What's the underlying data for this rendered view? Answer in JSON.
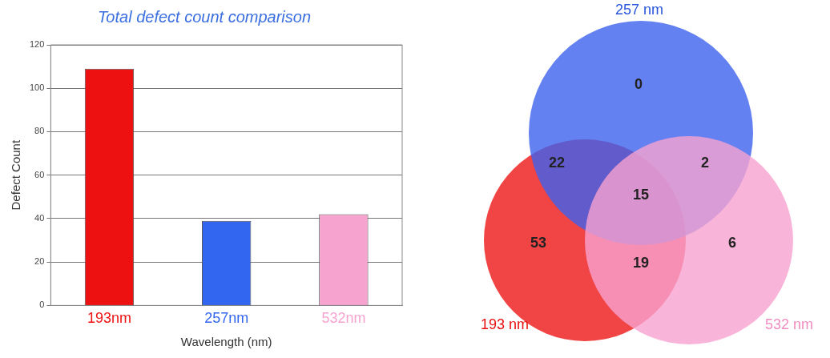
{
  "chart_data": [
    {
      "type": "bar",
      "title": "Total defect count comparison",
      "xlabel": "Wavelength (nm)",
      "ylabel": "Defect Count",
      "categories": [
        "193nm",
        "257nm",
        "532nm"
      ],
      "values": [
        109,
        39,
        42
      ],
      "colors": [
        "#ee1111",
        "#3366f0",
        "#f7a3cf"
      ],
      "ylim": [
        0,
        120
      ],
      "yticks": [
        0,
        20,
        40,
        60,
        80,
        100,
        120
      ],
      "grid": "y"
    },
    {
      "type": "other",
      "annotations": [
        "257 nm",
        "0",
        "22",
        "2",
        "15",
        "53",
        "19",
        "6",
        "193 nm",
        "532 nm"
      ]
    }
  ]
}
